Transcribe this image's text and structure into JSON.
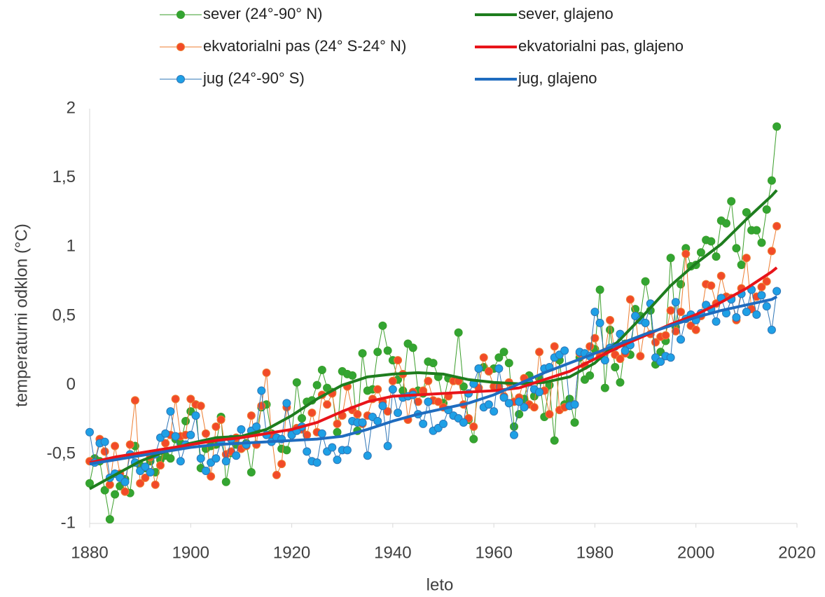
{
  "chart_data": {
    "type": "line",
    "x_label": "leto",
    "y_label": "temperaturni odklon (°C)",
    "xlim": [
      1880,
      2020
    ],
    "xticks": [
      1880,
      1900,
      1920,
      1940,
      1960,
      1980,
      2000,
      2020
    ],
    "ylim": [
      -1,
      2
    ],
    "yticks": [
      -1,
      {
        "value": -0.5,
        "label": "-0,5"
      },
      0,
      {
        "value": 0.5,
        "label": "0,5"
      },
      1,
      {
        "value": 1.5,
        "label": "1,5"
      },
      2
    ],
    "grid": false,
    "legend": "top",
    "x": [
      1880,
      1881,
      1882,
      1883,
      1884,
      1885,
      1886,
      1887,
      1888,
      1889,
      1890,
      1891,
      1892,
      1893,
      1894,
      1895,
      1896,
      1897,
      1898,
      1899,
      1900,
      1901,
      1902,
      1903,
      1904,
      1905,
      1906,
      1907,
      1908,
      1909,
      1910,
      1911,
      1912,
      1913,
      1914,
      1915,
      1916,
      1917,
      1918,
      1919,
      1920,
      1921,
      1922,
      1923,
      1924,
      1925,
      1926,
      1927,
      1928,
      1929,
      1930,
      1931,
      1932,
      1933,
      1934,
      1935,
      1936,
      1937,
      1938,
      1939,
      1940,
      1941,
      1942,
      1943,
      1944,
      1945,
      1946,
      1947,
      1948,
      1949,
      1950,
      1951,
      1952,
      1953,
      1954,
      1955,
      1956,
      1957,
      1958,
      1959,
      1960,
      1961,
      1962,
      1963,
      1964,
      1965,
      1966,
      1967,
      1968,
      1969,
      1970,
      1971,
      1972,
      1973,
      1974,
      1975,
      1976,
      1977,
      1978,
      1979,
      1980,
      1981,
      1982,
      1983,
      1984,
      1985,
      1986,
      1987,
      1988,
      1989,
      1990,
      1991,
      1992,
      1993,
      1994,
      1995,
      1996,
      1997,
      1998,
      1999,
      2000,
      2001,
      2002,
      2003,
      2004,
      2005,
      2006,
      2007,
      2008,
      2009,
      2010,
      2011,
      2012,
      2013,
      2014,
      2015,
      2016
    ],
    "series": [
      {
        "name": "sever (24°-90° N)",
        "color": "#3a9e2a",
        "marker_color": "#33a532",
        "marker": true,
        "line_width": 1,
        "values": [
          -0.71,
          -0.53,
          -0.55,
          -0.76,
          -0.97,
          -0.79,
          -0.73,
          -0.68,
          -0.78,
          -0.44,
          -0.58,
          -0.6,
          -0.55,
          -0.63,
          -0.54,
          -0.51,
          -0.53,
          -0.39,
          -0.42,
          -0.26,
          -0.19,
          -0.14,
          -0.6,
          -0.46,
          -0.44,
          -0.43,
          -0.23,
          -0.7,
          -0.49,
          -0.43,
          -0.46,
          -0.42,
          -0.63,
          -0.33,
          -0.16,
          -0.14,
          -0.35,
          -0.38,
          -0.46,
          -0.47,
          -0.36,
          0.02,
          -0.24,
          -0.12,
          -0.11,
          0.0,
          0.11,
          -0.02,
          -0.05,
          -0.34,
          0.1,
          0.08,
          0.07,
          -0.33,
          0.23,
          -0.04,
          -0.03,
          0.24,
          0.43,
          0.25,
          0.18,
          0.04,
          -0.04,
          0.3,
          0.27,
          -0.04,
          -0.06,
          0.17,
          0.16,
          0.06,
          -0.13,
          0.05,
          0.04,
          0.38,
          -0.01,
          -0.25,
          -0.39,
          0.12,
          0.13,
          0.1,
          0.12,
          0.2,
          0.24,
          0.16,
          -0.3,
          -0.21,
          -0.1,
          0.07,
          -0.08,
          0.05,
          -0.23,
          0.0,
          -0.4,
          0.18,
          -0.14,
          -0.1,
          -0.27,
          0.2,
          0.04,
          0.07,
          0.26,
          0.69,
          -0.02,
          0.4,
          0.13,
          0.02,
          0.3,
          0.22,
          0.55,
          0.5,
          0.75,
          0.54,
          0.15,
          0.24,
          0.32,
          0.92,
          0.42,
          0.73,
          0.99,
          0.86,
          0.87,
          0.96,
          1.05,
          1.04,
          0.93,
          1.19,
          1.17,
          1.33,
          0.99,
          0.87,
          1.25,
          1.12,
          1.12,
          1.03,
          1.27,
          1.48,
          1.87
        ]
      },
      {
        "name": "ekvatorialni pas (24° S-24° N)",
        "color": "#ed7d31",
        "marker_color": "#f24a28",
        "marker": true,
        "line_width": 1,
        "values": [
          -0.55,
          -0.56,
          -0.39,
          -0.48,
          -0.72,
          -0.44,
          -0.64,
          -0.77,
          -0.43,
          -0.11,
          -0.71,
          -0.67,
          -0.52,
          -0.72,
          -0.58,
          -0.42,
          -0.36,
          -0.1,
          -0.37,
          -0.36,
          -0.1,
          -0.14,
          -0.15,
          -0.35,
          -0.66,
          -0.3,
          -0.25,
          -0.5,
          -0.48,
          -0.38,
          -0.46,
          -0.44,
          -0.22,
          -0.43,
          -0.15,
          0.09,
          -0.36,
          -0.65,
          -0.57,
          -0.16,
          -0.34,
          -0.31,
          -0.32,
          -0.36,
          -0.2,
          -0.34,
          -0.07,
          -0.14,
          -0.06,
          -0.28,
          -0.22,
          -0.01,
          -0.18,
          -0.21,
          -0.28,
          -0.22,
          -0.1,
          -0.03,
          -0.12,
          -0.19,
          0.03,
          0.18,
          0.08,
          -0.25,
          -0.05,
          -0.12,
          -0.04,
          0.03,
          -0.11,
          -0.12,
          -0.16,
          -0.08,
          0.03,
          0.03,
          -0.14,
          -0.24,
          -0.3,
          -0.02,
          0.2,
          0.1,
          -0.01,
          -0.01,
          -0.08,
          0.02,
          -0.12,
          -0.09,
          0.05,
          -0.14,
          -0.16,
          0.24,
          -0.04,
          -0.21,
          0.28,
          -0.18,
          -0.16,
          -0.15,
          -0.14,
          0.23,
          0.14,
          0.28,
          0.34,
          0.21,
          0.24,
          0.47,
          0.22,
          0.19,
          0.23,
          0.62,
          0.5,
          0.21,
          0.45,
          0.37,
          0.31,
          0.35,
          0.36,
          0.54,
          0.39,
          0.53,
          0.95,
          0.43,
          0.4,
          0.5,
          0.73,
          0.72,
          0.59,
          0.79,
          0.64,
          0.63,
          0.47,
          0.7,
          0.92,
          0.55,
          0.64,
          0.71,
          0.75,
          0.97,
          1.15
        ]
      },
      {
        "name": "jug (24°-90° S)",
        "color": "#2e75b6",
        "marker_color": "#1ea0e6",
        "marker": true,
        "line_width": 1,
        "values": [
          -0.34,
          -0.56,
          -0.42,
          -0.41,
          -0.67,
          -0.64,
          -0.67,
          -0.7,
          -0.5,
          -0.56,
          -0.62,
          -0.59,
          -0.63,
          -0.5,
          -0.38,
          -0.35,
          -0.19,
          -0.37,
          -0.55,
          -0.43,
          -0.36,
          -0.22,
          -0.53,
          -0.62,
          -0.56,
          -0.53,
          -0.41,
          -0.55,
          -0.39,
          -0.51,
          -0.32,
          -0.43,
          -0.33,
          -0.3,
          -0.04,
          -0.36,
          -0.41,
          -0.38,
          -0.39,
          -0.13,
          -0.36,
          -0.33,
          -0.3,
          -0.48,
          -0.55,
          -0.56,
          -0.35,
          -0.48,
          -0.45,
          -0.54,
          -0.47,
          -0.47,
          -0.26,
          -0.27,
          -0.27,
          -0.51,
          -0.23,
          -0.26,
          -0.15,
          -0.44,
          -0.03,
          -0.2,
          -0.09,
          -0.08,
          -0.07,
          -0.21,
          -0.28,
          -0.12,
          -0.33,
          -0.31,
          -0.28,
          -0.18,
          -0.22,
          -0.24,
          -0.27,
          -0.06,
          0.01,
          0.12,
          -0.16,
          -0.14,
          -0.19,
          0.12,
          -0.09,
          -0.13,
          -0.36,
          -0.12,
          -0.16,
          0.02,
          -0.03,
          -0.05,
          0.12,
          0.13,
          0.2,
          0.22,
          0.25,
          -0.15,
          -0.14,
          0.24,
          0.23,
          0.21,
          0.53,
          0.45,
          0.18,
          0.27,
          0.28,
          0.37,
          0.25,
          0.29,
          0.5,
          0.47,
          0.45,
          0.59,
          0.2,
          0.17,
          0.21,
          0.2,
          0.6,
          0.33,
          0.48,
          0.51,
          0.47,
          0.52,
          0.58,
          0.55,
          0.46,
          0.63,
          0.52,
          0.62,
          0.49,
          0.66,
          0.53,
          0.69,
          0.51,
          0.65,
          0.57,
          0.4,
          0.68
        ]
      },
      {
        "name": "sever, glajeno",
        "color": "#1e7d1e",
        "marker": false,
        "line_width": 4,
        "x": [
          1880,
          1885,
          1890,
          1895,
          1900,
          1905,
          1910,
          1915,
          1920,
          1925,
          1930,
          1935,
          1940,
          1945,
          1950,
          1955,
          1960,
          1965,
          1970,
          1975,
          1980,
          1985,
          1990,
          1995,
          2000,
          2005,
          2010,
          2015,
          2016
        ],
        "values": [
          -0.75,
          -0.65,
          -0.55,
          -0.48,
          -0.42,
          -0.38,
          -0.37,
          -0.32,
          -0.22,
          -0.1,
          0.0,
          0.06,
          0.08,
          0.09,
          0.08,
          0.04,
          0.02,
          0.01,
          0.02,
          0.06,
          0.16,
          0.33,
          0.52,
          0.72,
          0.88,
          1.02,
          1.2,
          1.37,
          1.41
        ]
      },
      {
        "name": "ekvatorialni pas, glajeno",
        "color": "#e8141a",
        "marker": false,
        "line_width": 4,
        "x": [
          1880,
          1885,
          1890,
          1895,
          1900,
          1905,
          1910,
          1915,
          1920,
          1925,
          1930,
          1935,
          1940,
          1945,
          1950,
          1955,
          1960,
          1965,
          1970,
          1975,
          1980,
          1985,
          1990,
          1995,
          2000,
          2005,
          2010,
          2015,
          2016
        ],
        "values": [
          -0.56,
          -0.52,
          -0.49,
          -0.46,
          -0.43,
          -0.4,
          -0.38,
          -0.35,
          -0.32,
          -0.27,
          -0.19,
          -0.12,
          -0.08,
          -0.07,
          -0.06,
          -0.05,
          -0.04,
          -0.02,
          0.04,
          0.1,
          0.19,
          0.28,
          0.36,
          0.44,
          0.51,
          0.6,
          0.7,
          0.82,
          0.85
        ]
      },
      {
        "name": "jug, glajeno",
        "color": "#1f6cbf",
        "marker": false,
        "line_width": 4,
        "x": [
          1880,
          1885,
          1890,
          1895,
          1900,
          1905,
          1910,
          1915,
          1920,
          1925,
          1930,
          1935,
          1940,
          1945,
          1950,
          1955,
          1960,
          1965,
          1970,
          1975,
          1980,
          1985,
          1990,
          1995,
          2000,
          2005,
          2010,
          2015,
          2016
        ],
        "values": [
          -0.57,
          -0.54,
          -0.51,
          -0.48,
          -0.45,
          -0.43,
          -0.42,
          -0.41,
          -0.4,
          -0.39,
          -0.37,
          -0.32,
          -0.26,
          -0.21,
          -0.17,
          -0.13,
          -0.07,
          0.01,
          0.09,
          0.16,
          0.23,
          0.3,
          0.37,
          0.43,
          0.49,
          0.54,
          0.58,
          0.62,
          0.64
        ]
      }
    ]
  }
}
